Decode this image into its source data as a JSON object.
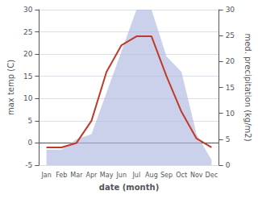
{
  "chart_data": {
    "type": "line",
    "xlabel": "date (month)",
    "ylabel": "max temp (C)",
    "y2label": "med. precipitation (kg/m2)",
    "categories": [
      "Jan",
      "Feb",
      "Mar",
      "Apr",
      "May",
      "Jun",
      "Jul",
      "Aug",
      "Sep",
      "Oct",
      "Nov",
      "Dec"
    ],
    "series": [
      {
        "type": "area",
        "axis": "y2",
        "color": "#b0b8e0",
        "values": [
          3,
          3,
          5,
          6,
          14,
          22,
          30,
          30,
          21,
          18,
          6,
          1
        ]
      },
      {
        "type": "line",
        "color": "#c0392b",
        "values": [
          -1,
          -1,
          0,
          5,
          16,
          22,
          24,
          24,
          15,
          7,
          1,
          -1
        ]
      }
    ],
    "ylim": [
      -5,
      30
    ],
    "yticks": [
      -5,
      0,
      5,
      10,
      15,
      20,
      25,
      30
    ],
    "y2lim": [
      0,
      30
    ],
    "y2ticks": [
      0,
      5,
      10,
      15,
      20,
      25,
      30
    ],
    "grid": true
  }
}
